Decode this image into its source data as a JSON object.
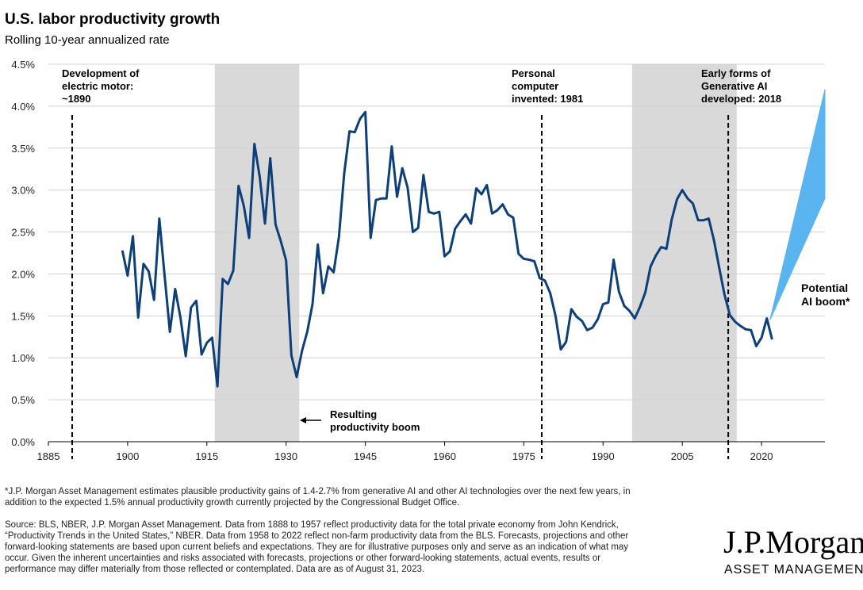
{
  "chart_data": {
    "type": "line",
    "title": "U.S. labor productivity growth",
    "subtitle": "Rolling 10-year annualized rate",
    "x": [
      1899,
      1900,
      1901,
      1902,
      1903,
      1904,
      1905,
      1906,
      1907,
      1908,
      1909,
      1910,
      1911,
      1912,
      1913,
      1914,
      1915,
      1916,
      1917,
      1918,
      1919,
      1920,
      1921,
      1922,
      1923,
      1924,
      1925,
      1926,
      1927,
      1928,
      1929,
      1930,
      1931,
      1932,
      1933,
      1934,
      1935,
      1936,
      1937,
      1938,
      1939,
      1940,
      1941,
      1942,
      1943,
      1944,
      1945,
      1946,
      1947,
      1948,
      1949,
      1950,
      1951,
      1952,
      1953,
      1954,
      1955,
      1956,
      1957,
      1958,
      1959,
      1960,
      1961,
      1962,
      1963,
      1964,
      1965,
      1966,
      1967,
      1968,
      1969,
      1970,
      1971,
      1972,
      1973,
      1974,
      1975,
      1976,
      1977,
      1978,
      1979,
      1980,
      1981,
      1982,
      1983,
      1984,
      1985,
      1986,
      1987,
      1988,
      1989,
      1990,
      1991,
      1992,
      1993,
      1994,
      1995,
      1996,
      1997,
      1998,
      1999,
      2000,
      2001,
      2002,
      2003,
      2004,
      2005,
      2006,
      2007,
      2008,
      2009,
      2010,
      2011,
      2012,
      2013,
      2014,
      2015,
      2016,
      2017,
      2018,
      2019,
      2020,
      2021,
      2022
    ],
    "series": [
      {
        "color": "#0d3f7a",
        "values": [
          2.28,
          1.98,
          2.45,
          1.48,
          2.12,
          2.03,
          1.69,
          2.66,
          1.98,
          1.31,
          1.82,
          1.48,
          1.02,
          1.6,
          1.68,
          1.04,
          1.18,
          1.24,
          0.66,
          1.94,
          1.88,
          2.04,
          3.05,
          2.81,
          2.43,
          3.55,
          3.16,
          2.6,
          3.38,
          2.59,
          2.39,
          2.16,
          1.03,
          0.77,
          1.08,
          1.31,
          1.64,
          2.35,
          1.77,
          2.09,
          2.02,
          2.44,
          3.2,
          3.7,
          3.69,
          3.85,
          3.93,
          2.43,
          2.88,
          2.9,
          2.9,
          3.52,
          2.92,
          3.26,
          3.03,
          2.5,
          2.55,
          3.18,
          2.74,
          2.72,
          2.74,
          2.21,
          2.27,
          2.54,
          2.63,
          2.71,
          2.6,
          3.02,
          2.95,
          3.06,
          2.72,
          2.76,
          2.83,
          2.71,
          2.67,
          2.24,
          2.18,
          2.17,
          2.15,
          1.95,
          1.92,
          1.77,
          1.5,
          1.1,
          1.19,
          1.58,
          1.49,
          1.44,
          1.33,
          1.36,
          1.46,
          1.64,
          1.66,
          2.17,
          1.79,
          1.62,
          1.56,
          1.47,
          1.61,
          1.78,
          2.09,
          2.22,
          2.32,
          2.3,
          2.65,
          2.89,
          3.0,
          2.9,
          2.84,
          2.64,
          2.64,
          2.66,
          2.4,
          2.07,
          1.75,
          1.51,
          1.43,
          1.38,
          1.34,
          1.33,
          1.14,
          1.24,
          1.47,
          1.22
        ]
      }
    ],
    "xlim": [
      1885,
      2032
    ],
    "xticks": [
      1885,
      1900,
      1915,
      1930,
      1945,
      1960,
      1975,
      1990,
      2005,
      2020
    ],
    "ylim": [
      0,
      4.5
    ],
    "yticks": [
      {
        "value": 0,
        "label": "0.0%"
      },
      {
        "value": 0.5,
        "label": "0.5%"
      },
      {
        "value": 1,
        "label": "1.0%"
      },
      {
        "value": 1.5,
        "label": "1.5%"
      },
      {
        "value": 2,
        "label": "2.0%"
      },
      {
        "value": 2.5,
        "label": "2.5%"
      },
      {
        "value": 3,
        "label": "3.0%"
      },
      {
        "value": 3.5,
        "label": "3.5%"
      },
      {
        "value": 4,
        "label": "4.0%"
      },
      {
        "value": 4.5,
        "label": "4.5%"
      }
    ],
    "grid": true,
    "shaded_periods": [
      [
        1916.5,
        1932.5
      ],
      [
        1995.5,
        2015.3
      ]
    ],
    "shade_color": "#d9d9d9",
    "events": [
      {
        "x": 1889.5,
        "label": [
          "Development of",
          "electric motor:",
          "~1890"
        ]
      },
      {
        "x": 1978.4,
        "label": [
          "Personal",
          "computer",
          "invented: 1981"
        ]
      },
      {
        "x": 2013.7,
        "label": [
          "Early forms of",
          "Generative AI",
          "developed: 2018"
        ]
      }
    ],
    "annotation": [
      "Resulting",
      "productivity boom"
    ],
    "forecast": {
      "label": [
        "Potential",
        "AI boom*"
      ],
      "color": "#5ab4f0",
      "x": [
        2021.6,
        2032
      ],
      "lower": [
        1.45,
        2.9
      ],
      "upper": [
        1.45,
        4.2
      ]
    },
    "footnote": [
      "*J.P. Morgan Asset Management estimates plausible productivity gains of 1.4-2.7% from generative AI and other AI technologies over the next few years, in",
      "addition to the expected 1.5% annual productivity growth currently projected by the Congressional Budget Office."
    ],
    "source": [
      "Source: BLS, NBER, J.P. Morgan Asset Management. Data from 1888 to 1957 reflect productivity data for the total private economy from John Kendrick,",
      "“Productivity Trends in the United States,” NBER. Data from 1958 to 2022 reflect non-farm productivity data from the BLS. Forecasts, projections and other",
      "forward-looking statements are based upon current beliefs and expectations. They are for illustrative purposes only and serve as an indication of what may",
      "occur. Given the inherent uncertainties and risks associated with forecasts, projections or other forward-looking statements, actual events, results or",
      "performance may differ materially from those reflected or contemplated. Data are as of August 31, 2023."
    ],
    "logo": {
      "name": "J.P.Morgan",
      "tagline": "ASSET MANAGEMENT"
    }
  }
}
